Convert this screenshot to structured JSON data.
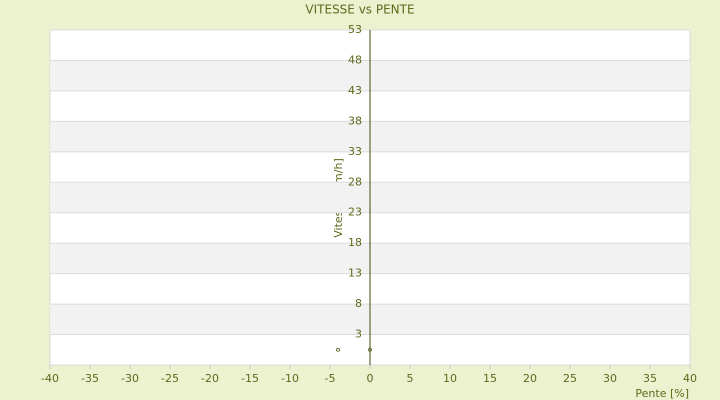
{
  "chart_data": {
    "type": "scatter",
    "title": "VITESSE vs PENTE",
    "x_label": "Pente [%]",
    "y_label": "Vitesse [km/h]",
    "series": [
      {
        "name": "Vitesse",
        "color": "#4a5a12",
        "x": [
          -4,
          0
        ],
        "values": [
          0.5,
          0.5
        ]
      }
    ],
    "xlim": [
      -40,
      40
    ],
    "xticks": [
      -40,
      -35,
      -30,
      -25,
      -20,
      -15,
      -10,
      -5,
      0,
      5,
      10,
      15,
      20,
      25,
      30,
      35,
      40
    ],
    "ylim": [
      -2,
      53
    ],
    "yticks": [
      3,
      8,
      13,
      18,
      23,
      28,
      33,
      38,
      43,
      48,
      53
    ],
    "grid": true
  }
}
